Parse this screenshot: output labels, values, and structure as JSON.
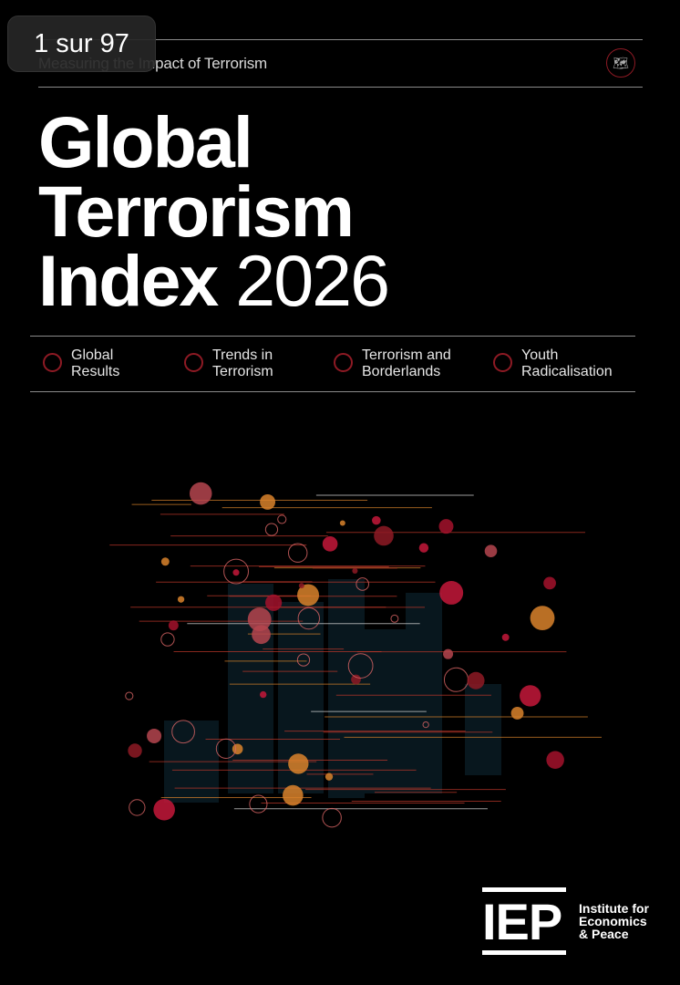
{
  "viewer": {
    "page_indicator": "1 sur 97"
  },
  "cover": {
    "subtitle": "Measuring the Impact of Terrorism",
    "globe_icon": "world-map-icon",
    "title_line1": "Global",
    "title_line2": "Terrorism",
    "title_line3a": "Index",
    "title_line3b": "2026",
    "sections": [
      {
        "line1": "Global",
        "line2": "Results"
      },
      {
        "line1": "Trends in",
        "line2": "Terrorism"
      },
      {
        "line1": "Terrorism and",
        "line2": "Borderlands"
      },
      {
        "line1": "Youth",
        "line2": "Radicalisation"
      }
    ],
    "accent_color": "#8e1a24",
    "logo": {
      "abbr": "IEP",
      "line1": "Institute for",
      "line2": "Economics",
      "line3": "& Peace"
    }
  }
}
